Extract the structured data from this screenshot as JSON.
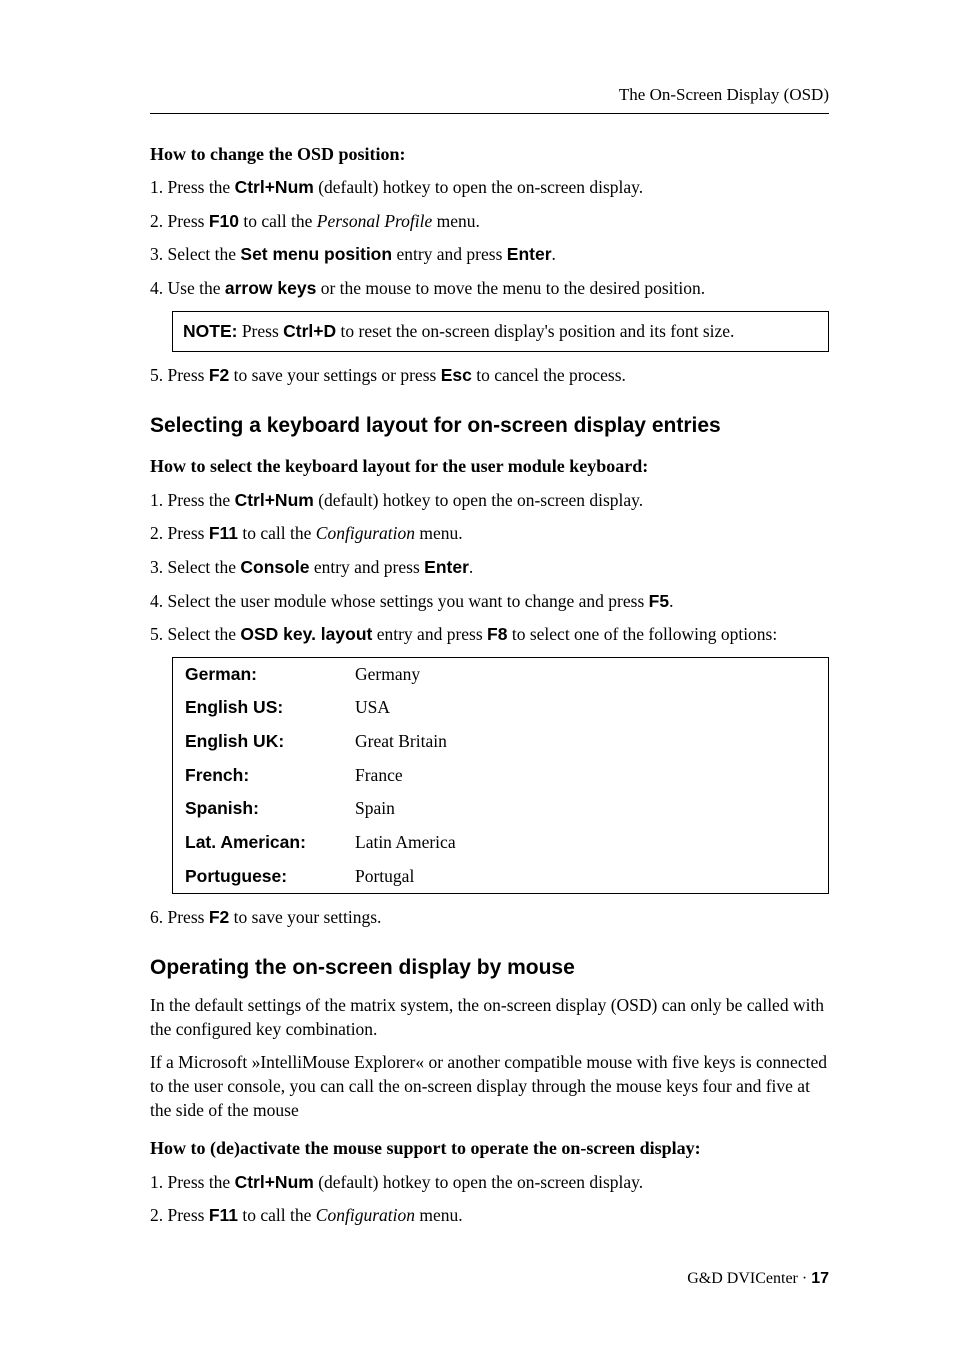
{
  "running_head": "The On-Screen Display (OSD)",
  "sec1": {
    "title": "How to change the OSD position:",
    "s1_a": "1.  Press the ",
    "s1_key": "Ctrl+Num",
    "s1_b": " (default) hotkey to open the on-screen display.",
    "s2_a": "2.  Press ",
    "s2_key": "F10",
    "s2_b": " to call the ",
    "s2_menu": "Personal Profile",
    "s2_c": " menu.",
    "s3_a": "3.  Select the ",
    "s3_key": "Set menu position",
    "s3_b": " entry and press ",
    "s3_key2": "Enter",
    "s3_c": ".",
    "s4_a": "4.  Use the ",
    "s4_key": "arrow keys",
    "s4_b": " or the mouse to move the menu to the desired position.",
    "note_label": "NOTE:",
    "note_a": " Press ",
    "note_key": "Ctrl+D",
    "note_b": " to reset the on-screen display's position and its font size.",
    "s5_a": "5.  Press ",
    "s5_key": "F2",
    "s5_b": " to save your settings or press ",
    "s5_key2": "Esc",
    "s5_c": " to cancel the process."
  },
  "sec2": {
    "heading": "Selecting a keyboard layout for on-screen display entries",
    "title": "How to select the keyboard layout for the user module keyboard:",
    "s1_a": "1.  Press the ",
    "s1_key": "Ctrl+Num",
    "s1_b": " (default) hotkey to open the on-screen display.",
    "s2_a": "2.  Press ",
    "s2_key": "F11",
    "s2_b": " to call the ",
    "s2_menu": "Configuration",
    "s2_c": " menu.",
    "s3_a": "3.  Select the ",
    "s3_key": "Console",
    "s3_b": " entry and press ",
    "s3_key2": "Enter",
    "s3_c": ".",
    "s4_a": "4.  Select the user module whose settings you want to change and press ",
    "s4_key": "F5",
    "s4_b": ".",
    "s5_a": "5.  Select the ",
    "s5_key": "OSD key. layout",
    "s5_b": " entry and press ",
    "s5_key2": "F8",
    "s5_c": " to select one of the following options:",
    "table": {
      "r1k": "German:",
      "r1v": "Germany",
      "r2k": "English US:",
      "r2v": "USA",
      "r3k": "English UK:",
      "r3v": "Great Britain",
      "r4k": "French:",
      "r4v": "France",
      "r5k": "Spanish:",
      "r5v": "Spain",
      "r6k": "Lat. American:",
      "r6v": "Latin America",
      "r7k": "Portuguese:",
      "r7v": "Portugal"
    },
    "s6_a": "6.  Press ",
    "s6_key": "F2",
    "s6_b": " to save your settings."
  },
  "sec3": {
    "heading": "Operating the on-screen display by mouse",
    "p1": "In the default settings of the matrix system, the on-screen display (OSD) can only be called with the configured key combination.",
    "p2": "If a Microsoft »IntelliMouse Explorer« or another compatible mouse with five keys is connected to the user console, you can call the on-screen display through the mouse keys four and five at the side of the mouse",
    "title": "How to (de)activate the mouse support to operate the on-screen display:",
    "s1_a": "1.  Press the ",
    "s1_key": "Ctrl+Num",
    "s1_b": " (default) hotkey to open the on-screen display.",
    "s2_a": "2.  Press ",
    "s2_key": "F11",
    "s2_b": " to call the ",
    "s2_menu": "Configuration",
    "s2_c": " menu."
  },
  "footer": {
    "label": "G&D DVICenter · ",
    "page": "17"
  }
}
